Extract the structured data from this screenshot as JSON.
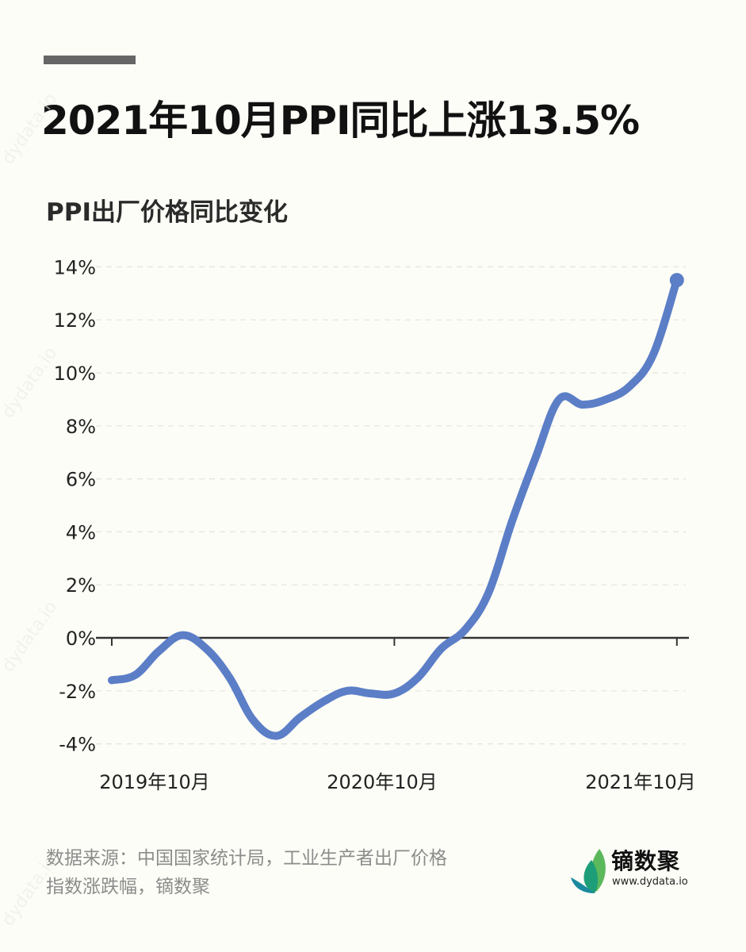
{
  "header": {
    "title": "2021年10月PPI同比上涨13.5%",
    "subtitle": "PPI出厂价格同比变化"
  },
  "footer": {
    "source_line1": "数据来源：中国国家统计局，工业生产者出厂价格",
    "source_line2": "指数涨跌幅，镝数聚",
    "logo_name": "镝数聚",
    "logo_url": "www.dydata.io"
  },
  "watermark": "dydata.io",
  "colors": {
    "line": "#5b7ec7",
    "axis": "#333333",
    "grid": "#e4e4dc",
    "accent_bar": "#666666",
    "background": "#fdfdf7"
  },
  "chart_data": {
    "type": "line",
    "title": "2021年10月PPI同比上涨13.5%",
    "subtitle": "PPI出厂价格同比变化",
    "xlabel": "",
    "ylabel": "",
    "ylim": [
      -4,
      14
    ],
    "y_ticks": [
      "14%",
      "12%",
      "10%",
      "8%",
      "6%",
      "4%",
      "2%",
      "0%",
      "-2%",
      "-4%"
    ],
    "x_tick_labels": [
      "2019年10月",
      "2020年10月",
      "2021年10月"
    ],
    "grid": "horizontal dashed",
    "legend": "none",
    "x": [
      "2019-10",
      "2019-11",
      "2019-12",
      "2020-01",
      "2020-02",
      "2020-03",
      "2020-04",
      "2020-05",
      "2020-06",
      "2020-07",
      "2020-08",
      "2020-09",
      "2020-10",
      "2020-11",
      "2020-12",
      "2021-01",
      "2021-02",
      "2021-03",
      "2021-04",
      "2021-05",
      "2021-06",
      "2021-07",
      "2021-08",
      "2021-09",
      "2021-10"
    ],
    "series": [
      {
        "name": "PPI同比",
        "values": [
          -1.6,
          -1.4,
          -0.5,
          0.1,
          -0.4,
          -1.5,
          -3.1,
          -3.7,
          -3.0,
          -2.4,
          -2.0,
          -2.1,
          -2.1,
          -1.5,
          -0.4,
          0.3,
          1.7,
          4.4,
          6.8,
          9.0,
          8.8,
          9.0,
          9.5,
          10.7,
          13.5
        ]
      }
    ],
    "annotations": [
      "end-point marker at 2021-10: 13.5%"
    ]
  }
}
